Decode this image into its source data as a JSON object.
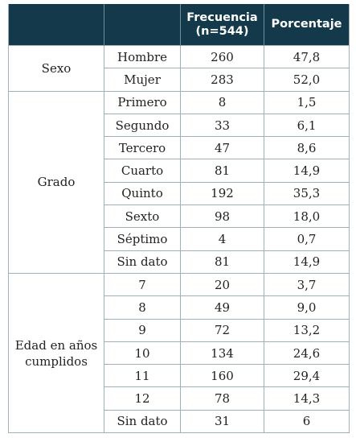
{
  "header": {
    "col1": "",
    "col2": "",
    "col3_line1": "Frecuencia",
    "col3_line2": "(n=544)",
    "col4": "Porcentaje"
  },
  "groups": [
    {
      "label_line1": "Sexo",
      "label_line2": "",
      "rows": [
        {
          "category": "Hombre",
          "frequency": "260",
          "percent": "47,8"
        },
        {
          "category": "Mujer",
          "frequency": "283",
          "percent": "52,0"
        }
      ]
    },
    {
      "label_line1": "Grado",
      "label_line2": "",
      "rows": [
        {
          "category": "Primero",
          "frequency": "8",
          "percent": "1,5"
        },
        {
          "category": "Segundo",
          "frequency": "33",
          "percent": "6,1"
        },
        {
          "category": "Tercero",
          "frequency": "47",
          "percent": "8,6"
        },
        {
          "category": "Cuarto",
          "frequency": "81",
          "percent": "14,9"
        },
        {
          "category": "Quinto",
          "frequency": "192",
          "percent": "35,3"
        },
        {
          "category": "Sexto",
          "frequency": "98",
          "percent": "18,0"
        },
        {
          "category": "Séptimo",
          "frequency": "4",
          "percent": "0,7"
        },
        {
          "category": "Sin dato",
          "frequency": "81",
          "percent": "14,9"
        }
      ]
    },
    {
      "label_line1": "Edad en años",
      "label_line2": "cumplidos",
      "rows": [
        {
          "category": "7",
          "frequency": "20",
          "percent": "3,7"
        },
        {
          "category": "8",
          "frequency": "49",
          "percent": "9,0"
        },
        {
          "category": "9",
          "frequency": "72",
          "percent": "13,2"
        },
        {
          "category": "10",
          "frequency": "134",
          "percent": "24,6"
        },
        {
          "category": "11",
          "frequency": "160",
          "percent": "29,4"
        },
        {
          "category": "12",
          "frequency": "78",
          "percent": "14,3"
        },
        {
          "category": "Sin dato",
          "frequency": "31",
          "percent": "6"
        }
      ]
    }
  ]
}
